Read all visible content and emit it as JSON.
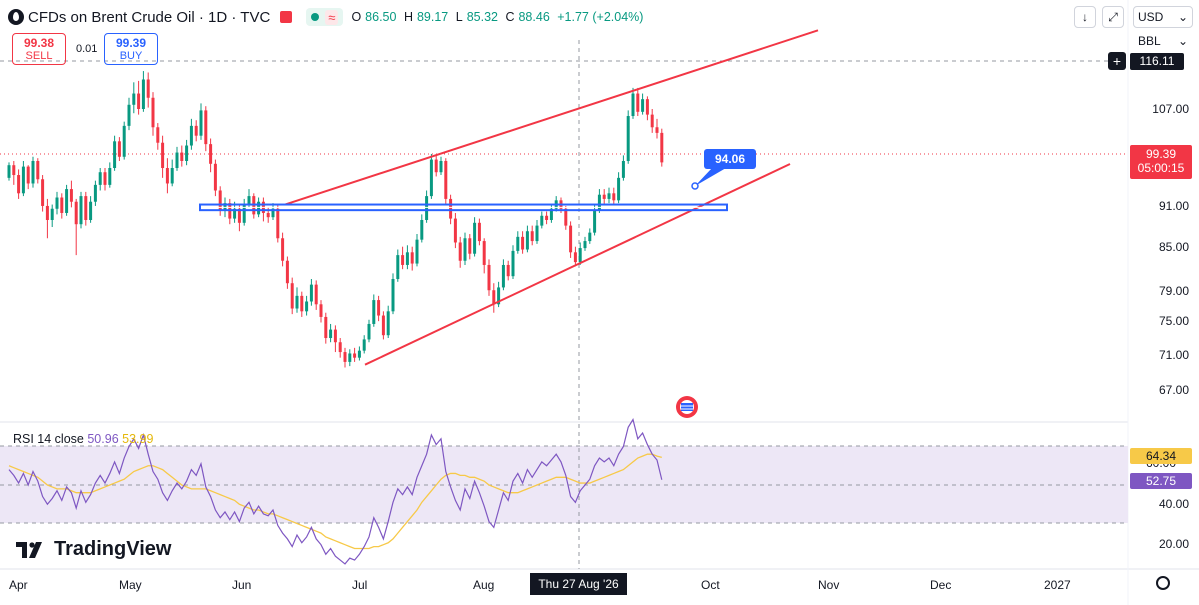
{
  "header": {
    "title": "CFDs on Brent Crude Oil · 1D · TVC",
    "open_label": "O",
    "open": "86.50",
    "high_label": "H",
    "high": "89.17",
    "low_label": "L",
    "low": "85.32",
    "close_label": "C",
    "close": "88.46",
    "change": "+1.77 (+2.04%)",
    "wave_icon": "≈"
  },
  "trade": {
    "sell_price": "99.38",
    "sell_label": "SELL",
    "spread": "0.01",
    "buy_price": "99.39",
    "buy_label": "BUY"
  },
  "toolbar": {
    "currency": "USD",
    "unit": "BBL",
    "download_icon": "↓",
    "fullscreen_icon": "⤢",
    "plus_icon": "+"
  },
  "price_tags": {
    "top_level": "116.11",
    "last_price": "99.39",
    "countdown": "05:00:15",
    "callout": "94.06",
    "rsi_ma": "64.34",
    "rsi_value": "52.75",
    "rsi_hidden": "60.00"
  },
  "price_axis": [
    "107.00",
    "91.00",
    "85.00",
    "79.00",
    "75.00",
    "71.00",
    "67.00"
  ],
  "rsi_axis": [
    "40.00",
    "20.00"
  ],
  "time_axis": [
    "Apr",
    "May",
    "Jun",
    "Jul",
    "Aug",
    "Oct",
    "Nov",
    "Dec",
    "2027"
  ],
  "crosshair_date": "Thu 27 Aug '26",
  "rsi": {
    "label": "RSI 14 close",
    "value": "50.96",
    "ma": "53.99"
  },
  "brand": "TradingView",
  "colors": {
    "up": "#089981",
    "down": "#f23645",
    "wedge": "#f23645",
    "zone": "#2962ff",
    "rsi": "#7e57c2",
    "rsi_ma": "#f7c948",
    "rsi_band": "#ede7f6"
  },
  "chart_data": {
    "type": "candlestick",
    "symbol": "CFDs on Brent Crude Oil",
    "interval": "1D",
    "ylim": [
      67,
      116.11
    ],
    "candles": [
      {
        "o": 97.2,
        "c": 99.0,
        "h": 99.4,
        "l": 96.8
      },
      {
        "o": 99.0,
        "c": 97.6,
        "h": 99.6,
        "l": 96.2
      },
      {
        "o": 97.6,
        "c": 95.0,
        "h": 98.4,
        "l": 94.2
      },
      {
        "o": 95.0,
        "c": 98.8,
        "h": 99.6,
        "l": 94.6
      },
      {
        "o": 98.8,
        "c": 96.4,
        "h": 99.0,
        "l": 95.6
      },
      {
        "o": 96.4,
        "c": 99.6,
        "h": 100.2,
        "l": 95.8
      },
      {
        "o": 99.6,
        "c": 97.0,
        "h": 100.0,
        "l": 96.4
      },
      {
        "o": 97.0,
        "c": 93.2,
        "h": 97.6,
        "l": 92.4
      },
      {
        "o": 93.2,
        "c": 91.2,
        "h": 94.2,
        "l": 88.6
      },
      {
        "o": 91.2,
        "c": 92.8,
        "h": 93.4,
        "l": 90.2
      },
      {
        "o": 92.8,
        "c": 94.4,
        "h": 95.2,
        "l": 92.0
      },
      {
        "o": 94.4,
        "c": 92.2,
        "h": 95.0,
        "l": 91.4
      },
      {
        "o": 92.2,
        "c": 95.6,
        "h": 96.2,
        "l": 91.8
      },
      {
        "o": 95.6,
        "c": 93.8,
        "h": 96.8,
        "l": 93.0
      },
      {
        "o": 93.8,
        "c": 90.6,
        "h": 94.2,
        "l": 86.2
      },
      {
        "o": 90.6,
        "c": 94.6,
        "h": 95.2,
        "l": 90.0
      },
      {
        "o": 94.6,
        "c": 91.2,
        "h": 95.2,
        "l": 90.4
      },
      {
        "o": 91.2,
        "c": 93.8,
        "h": 94.6,
        "l": 90.8
      },
      {
        "o": 93.8,
        "c": 96.2,
        "h": 96.8,
        "l": 93.2
      },
      {
        "o": 96.2,
        "c": 98.0,
        "h": 98.6,
        "l": 95.4
      },
      {
        "o": 98.0,
        "c": 96.2,
        "h": 98.6,
        "l": 95.4
      },
      {
        "o": 96.2,
        "c": 98.6,
        "h": 99.4,
        "l": 95.8
      },
      {
        "o": 98.6,
        "c": 102.4,
        "h": 103.2,
        "l": 98.2
      },
      {
        "o": 102.4,
        "c": 100.2,
        "h": 103.0,
        "l": 99.6
      },
      {
        "o": 100.2,
        "c": 104.6,
        "h": 105.2,
        "l": 99.8
      },
      {
        "o": 104.6,
        "c": 107.6,
        "h": 108.6,
        "l": 104.0
      },
      {
        "o": 107.6,
        "c": 109.2,
        "h": 110.8,
        "l": 106.4
      },
      {
        "o": 109.2,
        "c": 107.0,
        "h": 111.0,
        "l": 106.2
      },
      {
        "o": 107.0,
        "c": 111.2,
        "h": 112.4,
        "l": 106.6
      },
      {
        "o": 111.2,
        "c": 108.6,
        "h": 112.2,
        "l": 107.2
      },
      {
        "o": 108.6,
        "c": 104.4,
        "h": 109.4,
        "l": 103.2
      },
      {
        "o": 104.4,
        "c": 102.2,
        "h": 105.0,
        "l": 101.2
      },
      {
        "o": 102.2,
        "c": 98.6,
        "h": 103.2,
        "l": 97.2
      },
      {
        "o": 98.6,
        "c": 96.4,
        "h": 100.0,
        "l": 95.0
      },
      {
        "o": 96.4,
        "c": 98.6,
        "h": 99.8,
        "l": 96.0
      },
      {
        "o": 98.6,
        "c": 100.8,
        "h": 101.6,
        "l": 98.2
      },
      {
        "o": 100.8,
        "c": 99.6,
        "h": 101.8,
        "l": 98.8
      },
      {
        "o": 99.6,
        "c": 101.8,
        "h": 102.6,
        "l": 99.0
      },
      {
        "o": 101.8,
        "c": 104.6,
        "h": 105.6,
        "l": 101.2
      },
      {
        "o": 104.6,
        "c": 103.2,
        "h": 105.4,
        "l": 102.4
      },
      {
        "o": 103.2,
        "c": 106.8,
        "h": 107.8,
        "l": 102.6
      },
      {
        "o": 106.8,
        "c": 102.0,
        "h": 107.4,
        "l": 101.0
      },
      {
        "o": 102.0,
        "c": 99.2,
        "h": 102.8,
        "l": 98.0
      },
      {
        "o": 99.2,
        "c": 95.4,
        "h": 99.8,
        "l": 94.6
      },
      {
        "o": 95.4,
        "c": 92.6,
        "h": 96.0,
        "l": 91.8
      },
      {
        "o": 92.6,
        "c": 93.6,
        "h": 94.4,
        "l": 91.6
      },
      {
        "o": 93.6,
        "c": 91.4,
        "h": 94.2,
        "l": 90.6
      },
      {
        "o": 91.4,
        "c": 92.8,
        "h": 93.8,
        "l": 90.8
      },
      {
        "o": 92.8,
        "c": 90.8,
        "h": 93.4,
        "l": 89.6
      },
      {
        "o": 90.8,
        "c": 93.4,
        "h": 94.2,
        "l": 90.4
      },
      {
        "o": 93.4,
        "c": 94.6,
        "h": 95.6,
        "l": 93.0
      },
      {
        "o": 94.6,
        "c": 92.0,
        "h": 95.0,
        "l": 91.4
      },
      {
        "o": 92.0,
        "c": 93.8,
        "h": 94.4,
        "l": 91.6
      },
      {
        "o": 93.8,
        "c": 92.2,
        "h": 94.4,
        "l": 91.0
      },
      {
        "o": 92.2,
        "c": 91.6,
        "h": 93.0,
        "l": 90.8
      },
      {
        "o": 91.6,
        "c": 92.8,
        "h": 93.6,
        "l": 91.2
      },
      {
        "o": 92.8,
        "c": 88.6,
        "h": 93.4,
        "l": 88.0
      },
      {
        "o": 88.6,
        "c": 85.4,
        "h": 89.4,
        "l": 84.6
      },
      {
        "o": 85.4,
        "c": 82.2,
        "h": 86.0,
        "l": 81.4
      },
      {
        "o": 82.2,
        "c": 78.6,
        "h": 83.0,
        "l": 77.8
      },
      {
        "o": 78.6,
        "c": 80.4,
        "h": 81.6,
        "l": 78.0
      },
      {
        "o": 80.4,
        "c": 78.2,
        "h": 81.0,
        "l": 77.4
      },
      {
        "o": 78.2,
        "c": 79.6,
        "h": 80.4,
        "l": 77.6
      },
      {
        "o": 79.6,
        "c": 82.0,
        "h": 82.8,
        "l": 79.0
      },
      {
        "o": 82.0,
        "c": 79.2,
        "h": 82.6,
        "l": 78.4
      },
      {
        "o": 79.2,
        "c": 77.4,
        "h": 79.8,
        "l": 76.6
      },
      {
        "o": 77.4,
        "c": 74.4,
        "h": 78.0,
        "l": 73.6
      },
      {
        "o": 74.4,
        "c": 75.6,
        "h": 76.4,
        "l": 73.8
      },
      {
        "o": 75.6,
        "c": 73.8,
        "h": 76.2,
        "l": 72.4
      },
      {
        "o": 73.8,
        "c": 72.4,
        "h": 74.4,
        "l": 71.6
      },
      {
        "o": 72.4,
        "c": 71.0,
        "h": 73.0,
        "l": 70.2
      },
      {
        "o": 71.0,
        "c": 72.2,
        "h": 72.8,
        "l": 70.4
      },
      {
        "o": 72.2,
        "c": 71.6,
        "h": 73.0,
        "l": 71.0
      },
      {
        "o": 71.6,
        "c": 72.6,
        "h": 73.2,
        "l": 71.2
      },
      {
        "o": 72.6,
        "c": 74.2,
        "h": 74.8,
        "l": 72.2
      },
      {
        "o": 74.2,
        "c": 76.4,
        "h": 77.0,
        "l": 73.8
      },
      {
        "o": 76.4,
        "c": 79.8,
        "h": 80.6,
        "l": 76.0
      },
      {
        "o": 79.8,
        "c": 77.6,
        "h": 80.4,
        "l": 76.8
      },
      {
        "o": 77.6,
        "c": 74.8,
        "h": 78.2,
        "l": 74.2
      },
      {
        "o": 74.8,
        "c": 78.2,
        "h": 79.0,
        "l": 74.4
      },
      {
        "o": 78.2,
        "c": 82.8,
        "h": 83.6,
        "l": 77.8
      },
      {
        "o": 82.8,
        "c": 86.2,
        "h": 87.0,
        "l": 82.4
      },
      {
        "o": 86.2,
        "c": 84.8,
        "h": 87.4,
        "l": 84.2
      },
      {
        "o": 84.8,
        "c": 86.6,
        "h": 87.6,
        "l": 84.2
      },
      {
        "o": 86.6,
        "c": 85.0,
        "h": 87.4,
        "l": 84.0
      },
      {
        "o": 85.0,
        "c": 88.4,
        "h": 89.2,
        "l": 84.6
      },
      {
        "o": 88.4,
        "c": 91.2,
        "h": 92.0,
        "l": 88.0
      },
      {
        "o": 91.2,
        "c": 94.6,
        "h": 95.4,
        "l": 90.8
      },
      {
        "o": 94.6,
        "c": 99.8,
        "h": 100.6,
        "l": 94.2
      },
      {
        "o": 99.8,
        "c": 98.0,
        "h": 100.4,
        "l": 97.4
      },
      {
        "o": 98.0,
        "c": 99.6,
        "h": 100.2,
        "l": 97.6
      },
      {
        "o": 99.6,
        "c": 94.2,
        "h": 100.0,
        "l": 93.4
      },
      {
        "o": 94.2,
        "c": 91.4,
        "h": 94.8,
        "l": 90.6
      },
      {
        "o": 91.4,
        "c": 88.0,
        "h": 92.2,
        "l": 87.2
      },
      {
        "o": 88.0,
        "c": 85.4,
        "h": 88.8,
        "l": 84.4
      },
      {
        "o": 85.4,
        "c": 88.6,
        "h": 89.4,
        "l": 84.8
      },
      {
        "o": 88.6,
        "c": 86.4,
        "h": 89.2,
        "l": 85.6
      },
      {
        "o": 86.4,
        "c": 90.8,
        "h": 91.6,
        "l": 86.0
      },
      {
        "o": 90.8,
        "c": 88.2,
        "h": 91.4,
        "l": 87.6
      },
      {
        "o": 88.2,
        "c": 84.8,
        "h": 88.6,
        "l": 83.6
      },
      {
        "o": 84.8,
        "c": 81.2,
        "h": 85.6,
        "l": 80.4
      },
      {
        "o": 81.2,
        "c": 79.2,
        "h": 82.2,
        "l": 78.0
      },
      {
        "o": 79.2,
        "c": 81.6,
        "h": 82.4,
        "l": 78.8
      },
      {
        "o": 81.6,
        "c": 84.8,
        "h": 85.6,
        "l": 81.2
      },
      {
        "o": 84.8,
        "c": 83.2,
        "h": 85.4,
        "l": 82.6
      },
      {
        "o": 83.2,
        "c": 86.8,
        "h": 87.6,
        "l": 82.8
      },
      {
        "o": 86.8,
        "c": 88.8,
        "h": 89.6,
        "l": 86.4
      },
      {
        "o": 88.8,
        "c": 87.0,
        "h": 89.6,
        "l": 86.4
      },
      {
        "o": 87.0,
        "c": 89.6,
        "h": 90.4,
        "l": 86.6
      },
      {
        "o": 89.6,
        "c": 88.2,
        "h": 90.4,
        "l": 87.6
      },
      {
        "o": 88.2,
        "c": 90.4,
        "h": 91.2,
        "l": 87.8
      },
      {
        "o": 90.4,
        "c": 91.8,
        "h": 92.4,
        "l": 90.0
      },
      {
        "o": 91.8,
        "c": 91.2,
        "h": 92.4,
        "l": 90.6
      },
      {
        "o": 91.2,
        "c": 92.8,
        "h": 93.4,
        "l": 90.8
      },
      {
        "o": 92.8,
        "c": 94.0,
        "h": 94.6,
        "l": 92.4
      },
      {
        "o": 94.0,
        "c": 92.8,
        "h": 94.4,
        "l": 92.2
      },
      {
        "o": 92.8,
        "c": 90.4,
        "h": 93.2,
        "l": 89.8
      },
      {
        "o": 90.4,
        "c": 86.6,
        "h": 91.0,
        "l": 85.8
      },
      {
        "o": 86.6,
        "c": 85.2,
        "h": 87.4,
        "l": 84.6
      },
      {
        "o": 85.2,
        "c": 87.2,
        "h": 88.0,
        "l": 84.8
      },
      {
        "o": 87.2,
        "c": 88.2,
        "h": 88.8,
        "l": 86.8
      },
      {
        "o": 88.2,
        "c": 89.4,
        "h": 90.0,
        "l": 87.8
      },
      {
        "o": 89.4,
        "c": 92.6,
        "h": 93.4,
        "l": 89.0
      },
      {
        "o": 92.6,
        "c": 94.8,
        "h": 95.6,
        "l": 92.2
      },
      {
        "o": 94.8,
        "c": 94.2,
        "h": 95.6,
        "l": 93.4
      },
      {
        "o": 94.2,
        "c": 95.0,
        "h": 95.8,
        "l": 93.6
      },
      {
        "o": 95.0,
        "c": 94.0,
        "h": 95.8,
        "l": 93.4
      },
      {
        "o": 94.0,
        "c": 97.2,
        "h": 98.0,
        "l": 93.6
      },
      {
        "o": 97.2,
        "c": 99.6,
        "h": 100.4,
        "l": 96.8
      },
      {
        "o": 99.6,
        "c": 106.0,
        "h": 106.8,
        "l": 99.2
      },
      {
        "o": 106.0,
        "c": 109.2,
        "h": 110.0,
        "l": 105.6
      },
      {
        "o": 109.2,
        "c": 106.6,
        "h": 110.0,
        "l": 106.0
      },
      {
        "o": 106.6,
        "c": 108.4,
        "h": 109.2,
        "l": 106.2
      },
      {
        "o": 108.4,
        "c": 106.2,
        "h": 108.8,
        "l": 105.4
      },
      {
        "o": 106.2,
        "c": 104.4,
        "h": 107.0,
        "l": 103.6
      },
      {
        "o": 104.4,
        "c": 103.6,
        "h": 105.6,
        "l": 102.8
      },
      {
        "o": 103.6,
        "c": 99.4,
        "h": 104.2,
        "l": 98.8
      }
    ],
    "rsi_14": [
      58,
      55,
      51,
      56,
      50,
      57,
      52,
      44,
      40,
      43,
      47,
      42,
      49,
      46,
      38,
      47,
      41,
      45,
      51,
      55,
      51,
      56,
      62,
      56,
      64,
      70,
      74,
      69,
      76,
      66,
      57,
      53,
      46,
      42,
      47,
      51,
      48,
      52,
      58,
      55,
      61,
      49,
      44,
      37,
      33,
      36,
      32,
      36,
      31,
      38,
      41,
      35,
      39,
      35,
      34,
      37,
      29,
      25,
      22,
      18,
      24,
      20,
      23,
      28,
      22,
      19,
      14,
      17,
      13,
      11,
      9,
      12,
      11,
      14,
      18,
      23,
      33,
      28,
      22,
      31,
      41,
      48,
      45,
      49,
      45,
      54,
      60,
      66,
      76,
      71,
      74,
      57,
      49,
      42,
      37,
      48,
      43,
      52,
      46,
      39,
      31,
      28,
      37,
      46,
      42,
      52,
      56,
      51,
      58,
      54,
      58,
      62,
      60,
      63,
      66,
      62,
      55,
      44,
      41,
      47,
      50,
      53,
      60,
      64,
      62,
      64,
      60,
      66,
      70,
      80,
      84,
      74,
      77,
      71,
      66,
      63,
      52.75
    ],
    "rsi_ma_14": [
      60,
      59,
      58,
      57,
      56,
      55,
      54,
      52,
      50,
      49,
      48,
      48,
      48,
      47,
      46,
      46,
      46,
      46,
      47,
      48,
      49,
      50,
      51,
      52,
      53,
      55,
      57,
      58,
      59,
      60,
      60,
      59,
      58,
      56,
      54,
      52,
      50,
      49,
      48,
      48,
      48,
      48,
      47,
      46,
      45,
      44,
      43,
      42,
      40,
      39,
      38,
      37,
      37,
      36,
      35,
      35,
      34,
      33,
      32,
      31,
      30,
      29,
      28,
      27,
      26,
      25,
      23,
      22,
      21,
      20,
      19,
      18,
      17,
      17,
      17,
      17,
      18,
      18,
      19,
      20,
      22,
      25,
      28,
      31,
      34,
      37,
      41,
      44,
      47,
      50,
      53,
      55,
      56,
      56,
      55,
      55,
      54,
      54,
      53,
      52,
      50,
      49,
      48,
      47,
      46,
      46,
      46,
      47,
      48,
      49,
      50,
      51,
      52,
      53,
      54,
      54,
      54,
      53,
      52,
      51,
      51,
      51,
      52,
      53,
      54,
      55,
      56,
      57,
      58,
      60,
      62,
      64,
      65,
      66,
      66,
      65,
      64.34
    ],
    "overlays": {
      "wedge_upper": {
        "from": {
          "date": "Jun",
          "price": 93.4
        },
        "to": {
          "date": "Nov",
          "price": 118.2
        }
      },
      "wedge_lower": {
        "from": {
          "date": "Jul",
          "price": 70.6
        },
        "to": {
          "date": "Nov",
          "price": 99.6
        }
      },
      "support_zone": [
        92.6,
        93.4
      ],
      "callout_price": 94.06,
      "overbought": 70,
      "oversold": 30
    }
  }
}
